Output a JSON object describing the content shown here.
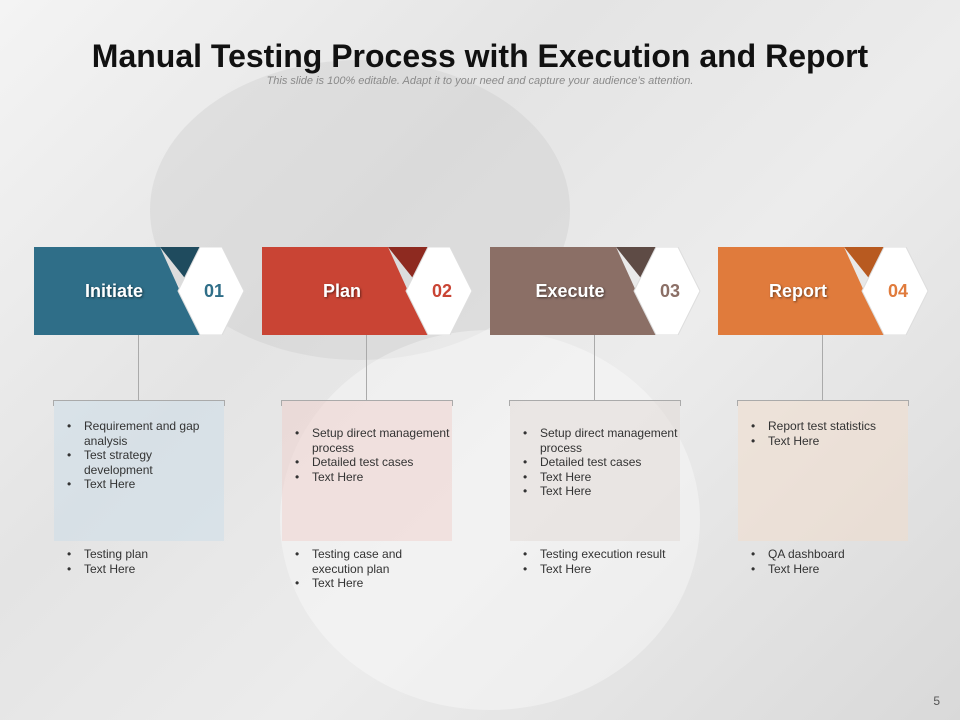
{
  "title": "Manual Testing Process with Execution and Report",
  "subtitle": "This slide is 100% editable. Adapt it to your need and capture your audience’s attention.",
  "steps": [
    {
      "label": "Initiate",
      "number": "01",
      "color": "#2f6e88",
      "dark": "#1f4b5e",
      "tint": "rgba(200,220,232,0.45)",
      "top_items": [
        "Requirement and gap analysis",
        "Test strategy development",
        "Text Here"
      ],
      "bottom_items": [
        "Testing plan",
        "Text Here"
      ]
    },
    {
      "label": "Plan",
      "number": "02",
      "color": "#c94434",
      "dark": "#8e2a20",
      "tint": "rgba(240,205,200,0.45)",
      "top_items": [
        "Setup direct management process",
        "Detailed test cases",
        "Text Here"
      ],
      "bottom_items": [
        "Testing case and execution plan",
        "Text Here"
      ]
    },
    {
      "label": "Execute",
      "number": "03",
      "color": "#8b6f66",
      "dark": "#5e4b45",
      "tint": "rgba(225,215,210,0.45)",
      "top_items": [
        "Setup direct management process",
        "Detailed test cases",
        "Text Here",
        "Text Here"
      ],
      "bottom_items": [
        "Testing execution result",
        "Text Here"
      ]
    },
    {
      "label": "Report",
      "number": "04",
      "color": "#e07b3c",
      "dark": "#b85a20",
      "tint": "rgba(245,220,200,0.45)",
      "top_items": [
        "Report test statistics",
        "Text Here"
      ],
      "bottom_items": [
        "QA dashboard",
        "Text Here"
      ]
    }
  ],
  "page_number": "5"
}
